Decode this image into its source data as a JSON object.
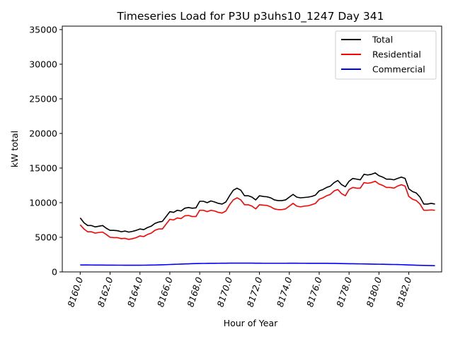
{
  "chart_data": {
    "type": "line",
    "title": "Timeseries Load for P3U p3uhs10_1247  Day 341",
    "xlabel": "Hour of Year",
    "ylabel": "kW total",
    "xlim": [
      8158.8,
      8184.2
    ],
    "ylim": [
      0,
      35500
    ],
    "x_ticks": [
      8160,
      8162,
      8164,
      8166,
      8168,
      8170,
      8172,
      8174,
      8176,
      8178,
      8180,
      8182
    ],
    "x_tick_labels": [
      "8160.0",
      "8162.0",
      "8164.0",
      "8166.0",
      "8168.0",
      "8170.0",
      "8172.0",
      "8174.0",
      "8176.0",
      "8178.0",
      "8180.0",
      "8182.0"
    ],
    "y_ticks": [
      0,
      5000,
      10000,
      15000,
      20000,
      25000,
      30000,
      35000
    ],
    "y_tick_labels": [
      "0",
      "5000",
      "10000",
      "15000",
      "20000",
      "25000",
      "30000",
      "35000"
    ],
    "grid": false,
    "legend_position": "top-right",
    "x": [
      8160.0,
      8160.25,
      8160.5,
      8160.75,
      8161.0,
      8161.25,
      8161.5,
      8161.75,
      8162.0,
      8162.25,
      8162.5,
      8162.75,
      8163.0,
      8163.25,
      8163.5,
      8163.75,
      8164.0,
      8164.25,
      8164.5,
      8164.75,
      8165.0,
      8165.25,
      8165.5,
      8165.75,
      8166.0,
      8166.25,
      8166.5,
      8166.75,
      8167.0,
      8167.25,
      8167.5,
      8167.75,
      8168.0,
      8168.25,
      8168.5,
      8168.75,
      8169.0,
      8169.25,
      8169.5,
      8169.75,
      8170.0,
      8170.25,
      8170.5,
      8170.75,
      8171.0,
      8171.25,
      8171.5,
      8171.75,
      8172.0,
      8172.25,
      8172.5,
      8172.75,
      8173.0,
      8173.25,
      8173.5,
      8173.75,
      8174.0,
      8174.25,
      8174.5,
      8174.75,
      8175.0,
      8175.25,
      8175.5,
      8175.75,
      8176.0,
      8176.25,
      8176.5,
      8176.75,
      8177.0,
      8177.25,
      8177.5,
      8177.75,
      8178.0,
      8178.25,
      8178.5,
      8178.75,
      8179.0,
      8179.25,
      8179.5,
      8179.75,
      8180.0,
      8180.25,
      8180.5,
      8180.75,
      8181.0,
      8181.25,
      8181.5,
      8181.75,
      8182.0,
      8182.25,
      8182.5,
      8182.75,
      8183.0,
      8183.25,
      8183.5,
      8183.75
    ],
    "series": [
      {
        "name": "Total",
        "color": "#000000",
        "values": [
          7800,
          7100,
          6700,
          6700,
          6500,
          6600,
          6700,
          6300,
          6000,
          6000,
          5950,
          5800,
          5900,
          5750,
          5850,
          6000,
          6200,
          6100,
          6400,
          6600,
          7000,
          7200,
          7300,
          8000,
          8700,
          8600,
          8900,
          8800,
          9200,
          9300,
          9200,
          9250,
          10200,
          10200,
          10000,
          10250,
          10100,
          9900,
          9800,
          10100,
          11000,
          11800,
          12100,
          11800,
          11000,
          11000,
          10800,
          10400,
          11000,
          10900,
          10850,
          10700,
          10400,
          10300,
          10300,
          10400,
          10800,
          11200,
          10800,
          10700,
          10750,
          10800,
          10900,
          11100,
          11700,
          11900,
          12200,
          12400,
          12900,
          13200,
          12600,
          12300,
          13100,
          13500,
          13400,
          13300,
          14100,
          14000,
          14100,
          14300,
          13900,
          13700,
          13400,
          13400,
          13300,
          13500,
          13700,
          13500,
          12000,
          11600,
          11400,
          10800,
          9800,
          9800,
          9900,
          9800
        ]
      },
      {
        "name": "Residential",
        "color": "#ff0000",
        "values": [
          6800,
          6200,
          5800,
          5800,
          5600,
          5700,
          5750,
          5400,
          5000,
          4950,
          4950,
          4800,
          4850,
          4700,
          4800,
          4950,
          5200,
          5100,
          5400,
          5600,
          6000,
          6200,
          6200,
          6900,
          7600,
          7500,
          7800,
          7700,
          8100,
          8150,
          8000,
          8000,
          8900,
          8900,
          8700,
          8900,
          8800,
          8600,
          8500,
          8800,
          9700,
          10400,
          10700,
          10400,
          9700,
          9700,
          9500,
          9100,
          9700,
          9650,
          9600,
          9400,
          9100,
          9000,
          9000,
          9100,
          9500,
          9900,
          9500,
          9400,
          9500,
          9550,
          9700,
          9900,
          10500,
          10700,
          11000,
          11200,
          11700,
          11900,
          11300,
          11000,
          11900,
          12200,
          12100,
          12100,
          12900,
          12800,
          12900,
          13100,
          12700,
          12500,
          12200,
          12200,
          12100,
          12400,
          12600,
          12400,
          10900,
          10500,
          10300,
          9800,
          8900,
          8900,
          8950,
          8900
        ]
      },
      {
        "name": "Commercial",
        "color": "#0000ff",
        "values": [
          1000,
          1000,
          1000,
          995,
          990,
          990,
          985,
          980,
          975,
          975,
          970,
          970,
          965,
          965,
          965,
          965,
          965,
          970,
          975,
          985,
          995,
          1010,
          1025,
          1045,
          1070,
          1090,
          1110,
          1130,
          1150,
          1170,
          1190,
          1205,
          1220,
          1225,
          1235,
          1240,
          1245,
          1250,
          1255,
          1260,
          1265,
          1265,
          1270,
          1270,
          1270,
          1270,
          1265,
          1260,
          1255,
          1250,
          1250,
          1250,
          1250,
          1250,
          1250,
          1250,
          1255,
          1255,
          1255,
          1250,
          1250,
          1245,
          1245,
          1245,
          1245,
          1245,
          1240,
          1235,
          1230,
          1220,
          1205,
          1195,
          1180,
          1175,
          1170,
          1160,
          1150,
          1140,
          1130,
          1120,
          1110,
          1100,
          1090,
          1080,
          1070,
          1060,
          1045,
          1025,
          1005,
          985,
          965,
          950,
          935,
          920,
          910,
          900
        ]
      }
    ]
  }
}
